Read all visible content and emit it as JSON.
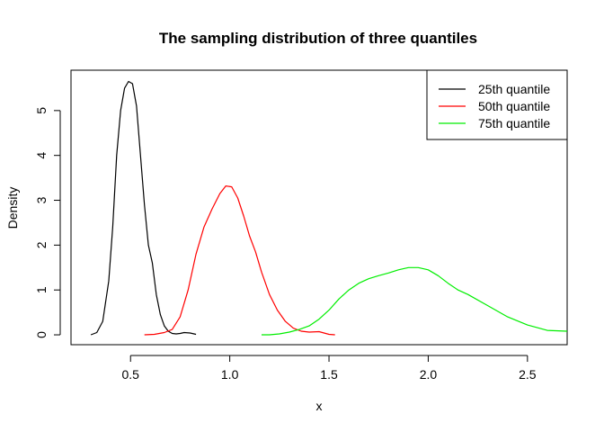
{
  "chart_data": {
    "type": "line",
    "title": "The sampling distribution of three quantiles",
    "xlabel": "x",
    "ylabel": "Density",
    "xlim": [
      0.2,
      2.7
    ],
    "ylim": [
      -0.22,
      5.9
    ],
    "x_ticks": [
      0.5,
      1.0,
      1.5,
      2.0,
      2.5
    ],
    "x_tick_labels": [
      "0.5",
      "1.0",
      "1.5",
      "2.0",
      "2.5"
    ],
    "y_ticks": [
      0,
      1,
      2,
      3,
      4,
      5
    ],
    "y_tick_labels": [
      "0",
      "1",
      "2",
      "3",
      "4",
      "5"
    ],
    "grid": false,
    "legend_position": "top-right",
    "series": [
      {
        "name": "25th quantile",
        "color": "#000000",
        "x": [
          0.3,
          0.33,
          0.36,
          0.39,
          0.41,
          0.43,
          0.45,
          0.47,
          0.49,
          0.51,
          0.53,
          0.55,
          0.57,
          0.59,
          0.61,
          0.63,
          0.65,
          0.67,
          0.69,
          0.71,
          0.73,
          0.75,
          0.77,
          0.8,
          0.83
        ],
        "y": [
          0.0,
          0.05,
          0.3,
          1.2,
          2.4,
          4.0,
          5.0,
          5.5,
          5.65,
          5.6,
          5.1,
          4.0,
          2.9,
          2.0,
          1.6,
          0.9,
          0.45,
          0.2,
          0.08,
          0.03,
          0.02,
          0.03,
          0.05,
          0.04,
          0.01
        ]
      },
      {
        "name": "50th quantile",
        "color": "#ff0000",
        "x": [
          0.57,
          0.62,
          0.67,
          0.71,
          0.75,
          0.79,
          0.83,
          0.87,
          0.91,
          0.95,
          0.98,
          1.01,
          1.04,
          1.07,
          1.1,
          1.13,
          1.16,
          1.2,
          1.24,
          1.28,
          1.32,
          1.36,
          1.4,
          1.45,
          1.5,
          1.53
        ],
        "y": [
          0.0,
          0.01,
          0.05,
          0.12,
          0.4,
          1.0,
          1.8,
          2.4,
          2.8,
          3.15,
          3.32,
          3.3,
          3.05,
          2.65,
          2.2,
          1.85,
          1.4,
          0.9,
          0.55,
          0.3,
          0.15,
          0.08,
          0.06,
          0.07,
          0.01,
          0.0
        ]
      },
      {
        "name": "75th quantile",
        "color": "#00ee00",
        "x": [
          1.16,
          1.2,
          1.25,
          1.3,
          1.35,
          1.4,
          1.45,
          1.5,
          1.55,
          1.6,
          1.65,
          1.7,
          1.75,
          1.8,
          1.85,
          1.9,
          1.95,
          2.0,
          2.05,
          2.1,
          2.15,
          2.2,
          2.3,
          2.4,
          2.5,
          2.6,
          2.7
        ],
        "y": [
          0.0,
          0.0,
          0.02,
          0.06,
          0.12,
          0.2,
          0.35,
          0.55,
          0.8,
          1.0,
          1.15,
          1.25,
          1.32,
          1.38,
          1.45,
          1.5,
          1.5,
          1.45,
          1.32,
          1.15,
          1.0,
          0.9,
          0.65,
          0.4,
          0.22,
          0.1,
          0.08
        ]
      }
    ]
  }
}
